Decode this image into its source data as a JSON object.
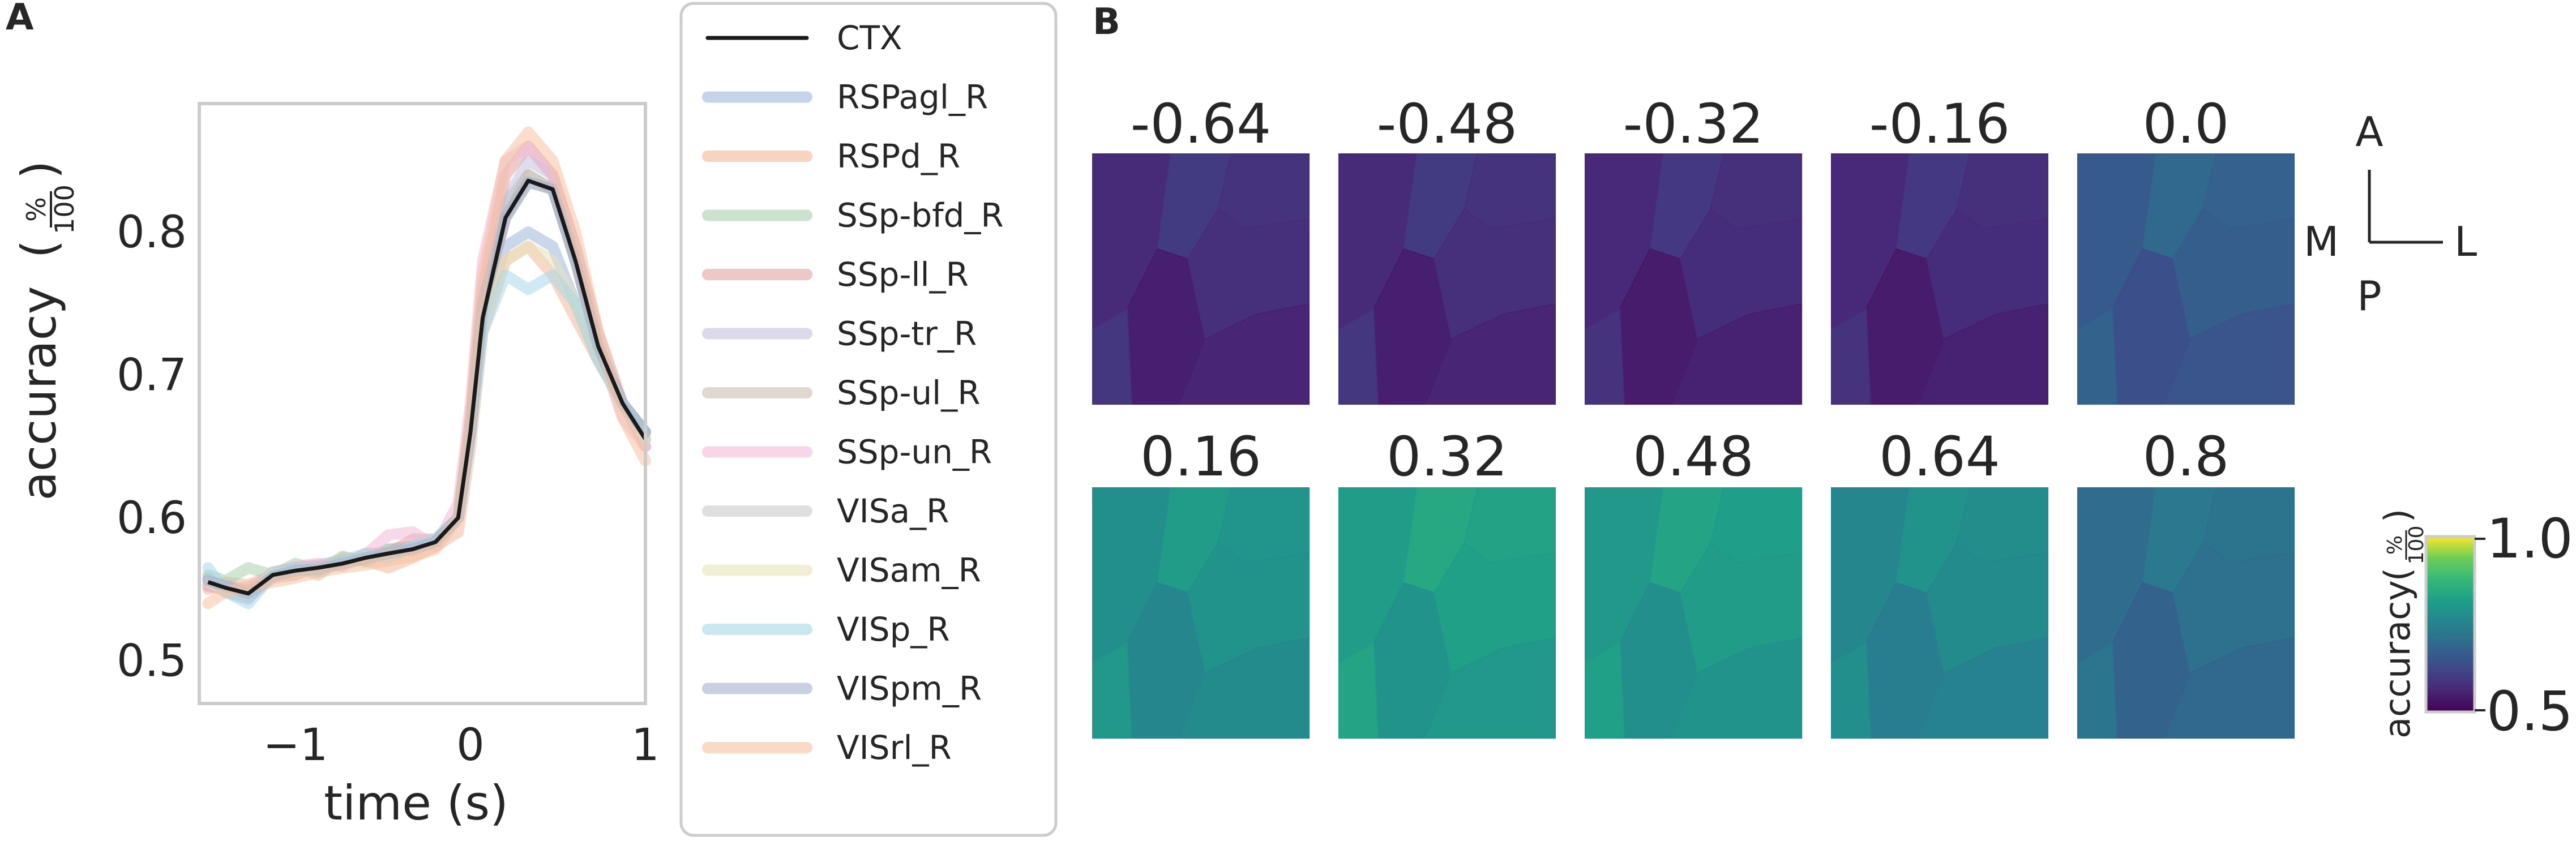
{
  "colors": {
    "ctx_line": "#1a1a1a",
    "axis_frame": "#cccccc",
    "series": [
      "#9fb7db",
      "#f2b89a",
      "#a9cfad",
      "#e0a3a2",
      "#c4bfdc",
      "#cdbcb3",
      "#f0bad9",
      "#c9c9c9",
      "#e7e2b8",
      "#a8d8e8",
      "#a3b1cf",
      "#f5c2a1"
    ]
  },
  "chart_data": [
    {
      "type": "line",
      "panel": "A",
      "title": "",
      "xlabel": "time (s)",
      "ylabel": "accuracy",
      "ylabel_fraction_num": "%",
      "ylabel_fraction_den": "100",
      "xlim": [
        -1.55,
        1.0
      ],
      "ylim": [
        0.47,
        0.89
      ],
      "xticks": [
        -1,
        0,
        1
      ],
      "xtick_labels": [
        "−1",
        "0",
        "1"
      ],
      "yticks": [
        0.5,
        0.6,
        0.7,
        0.8
      ],
      "ytick_labels": [
        "0.5",
        "0.6",
        "0.7",
        "0.8"
      ],
      "grid": false,
      "legend_position": "right-outside",
      "x": [
        -1.5,
        -1.4,
        -1.27,
        -1.13,
        -1.0,
        -0.87,
        -0.73,
        -0.6,
        -0.47,
        -0.33,
        -0.2,
        -0.07,
        0.0,
        0.07,
        0.2,
        0.33,
        0.47,
        0.6,
        0.73,
        0.87,
        1.0
      ],
      "ctx": {
        "name": "CTX",
        "values": [
          0.555,
          0.551,
          0.547,
          0.56,
          0.563,
          0.565,
          0.568,
          0.572,
          0.575,
          0.578,
          0.583,
          0.6,
          0.66,
          0.74,
          0.81,
          0.836,
          0.83,
          0.78,
          0.72,
          0.68,
          0.655
        ]
      },
      "series": [
        {
          "name": "RSPagl_R",
          "values": [
            0.558,
            0.548,
            0.543,
            0.562,
            0.565,
            0.567,
            0.57,
            0.571,
            0.578,
            0.58,
            0.582,
            0.6,
            0.66,
            0.74,
            0.79,
            0.8,
            0.79,
            0.75,
            0.71,
            0.68,
            0.66
          ]
        },
        {
          "name": "RSPd_R",
          "values": [
            0.55,
            0.555,
            0.553,
            0.56,
            0.565,
            0.56,
            0.572,
            0.57,
            0.565,
            0.572,
            0.58,
            0.59,
            0.65,
            0.73,
            0.78,
            0.79,
            0.77,
            0.74,
            0.71,
            0.68,
            0.66
          ]
        },
        {
          "name": "SSp-bfd_R",
          "values": [
            0.56,
            0.556,
            0.565,
            0.56,
            0.568,
            0.563,
            0.573,
            0.569,
            0.578,
            0.577,
            0.584,
            0.6,
            0.67,
            0.75,
            0.82,
            0.84,
            0.83,
            0.78,
            0.72,
            0.68,
            0.655
          ]
        },
        {
          "name": "SSp-ll_R",
          "values": [
            0.552,
            0.55,
            0.545,
            0.558,
            0.56,
            0.566,
            0.567,
            0.575,
            0.575,
            0.585,
            0.585,
            0.6,
            0.67,
            0.76,
            0.84,
            0.86,
            0.84,
            0.79,
            0.73,
            0.68,
            0.65
          ]
        },
        {
          "name": "SSp-tr_R",
          "values": [
            0.556,
            0.552,
            0.548,
            0.561,
            0.562,
            0.564,
            0.569,
            0.573,
            0.574,
            0.579,
            0.582,
            0.6,
            0.66,
            0.75,
            0.82,
            0.85,
            0.84,
            0.79,
            0.72,
            0.68,
            0.655
          ]
        },
        {
          "name": "SSp-ul_R",
          "values": [
            0.554,
            0.553,
            0.549,
            0.559,
            0.564,
            0.566,
            0.568,
            0.571,
            0.576,
            0.578,
            0.583,
            0.6,
            0.66,
            0.75,
            0.81,
            0.84,
            0.83,
            0.78,
            0.72,
            0.68,
            0.66
          ]
        },
        {
          "name": "SSp-un_R",
          "values": [
            0.553,
            0.549,
            0.551,
            0.56,
            0.566,
            0.568,
            0.566,
            0.574,
            0.588,
            0.59,
            0.58,
            0.61,
            0.68,
            0.78,
            0.85,
            0.86,
            0.84,
            0.79,
            0.72,
            0.67,
            0.65
          ]
        },
        {
          "name": "VISa_R",
          "values": [
            0.557,
            0.551,
            0.547,
            0.562,
            0.563,
            0.565,
            0.569,
            0.572,
            0.575,
            0.578,
            0.583,
            0.6,
            0.66,
            0.75,
            0.81,
            0.835,
            0.83,
            0.78,
            0.72,
            0.68,
            0.655
          ]
        },
        {
          "name": "VISam_R",
          "values": [
            0.555,
            0.55,
            0.546,
            0.561,
            0.562,
            0.564,
            0.568,
            0.573,
            0.574,
            0.577,
            0.582,
            0.6,
            0.66,
            0.74,
            0.78,
            0.79,
            0.78,
            0.75,
            0.71,
            0.68,
            0.655
          ]
        },
        {
          "name": "VISp_R",
          "values": [
            0.565,
            0.548,
            0.54,
            0.56,
            0.565,
            0.562,
            0.57,
            0.575,
            0.572,
            0.58,
            0.585,
            0.6,
            0.66,
            0.73,
            0.77,
            0.76,
            0.77,
            0.75,
            0.71,
            0.68,
            0.66
          ]
        },
        {
          "name": "VISpm_R",
          "values": [
            0.556,
            0.552,
            0.547,
            0.559,
            0.563,
            0.564,
            0.568,
            0.572,
            0.575,
            0.578,
            0.583,
            0.6,
            0.66,
            0.75,
            0.81,
            0.835,
            0.83,
            0.78,
            0.72,
            0.68,
            0.66
          ]
        },
        {
          "name": "VISrl_R",
          "values": [
            0.54,
            0.548,
            0.552,
            0.555,
            0.558,
            0.562,
            0.565,
            0.567,
            0.57,
            0.573,
            0.578,
            0.6,
            0.67,
            0.77,
            0.85,
            0.87,
            0.85,
            0.8,
            0.73,
            0.67,
            0.64
          ]
        }
      ]
    },
    {
      "type": "heatmap",
      "panel": "B",
      "description": "cortical map of decoding accuracy per time point",
      "times": [
        "-0.64",
        "-0.48",
        "-0.32",
        "-0.16",
        "0.0",
        "0.16",
        "0.32",
        "0.48",
        "0.64",
        "0.8"
      ],
      "mean_accuracy": [
        0.57,
        0.57,
        0.565,
        0.565,
        0.66,
        0.78,
        0.81,
        0.8,
        0.76,
        0.7
      ],
      "orientation_labels": [
        "A",
        "M",
        "L",
        "P"
      ],
      "colorbar": {
        "colormap": "viridis",
        "vmin": 0.5,
        "vmax": 1.0,
        "tick_labels": [
          "1.0",
          "0.5"
        ],
        "label": "accuracy",
        "label_fraction_num": "%",
        "label_fraction_den": "100"
      }
    }
  ],
  "panel_labels": {
    "a": "A",
    "b": "B"
  }
}
